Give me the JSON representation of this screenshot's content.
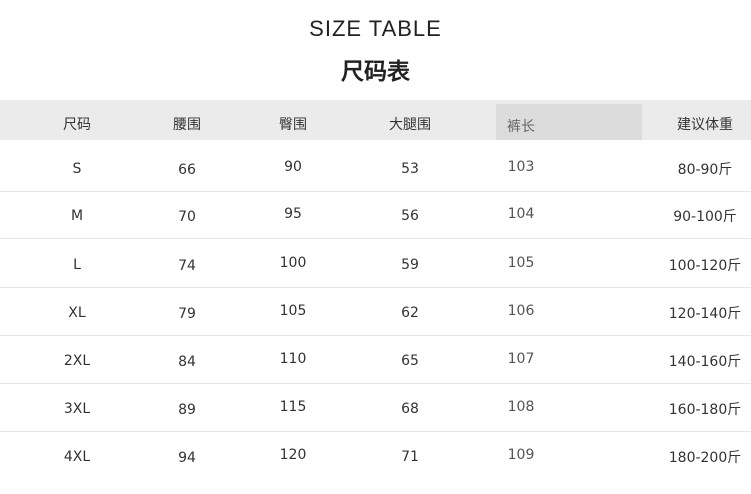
{
  "title_en": "SIZE TABLE",
  "title_cn": "尺码表",
  "headers": [
    "尺码",
    "腰围",
    "臀围",
    "大腿围",
    "裤长",
    "建议体重"
  ],
  "rows": [
    [
      "S",
      "66",
      "90",
      "53",
      "103",
      "80-90斤"
    ],
    [
      "M",
      "70",
      "95",
      "56",
      "104",
      "90-100斤"
    ],
    [
      "L",
      "74",
      "100",
      "59",
      "105",
      "100-120斤"
    ],
    [
      "XL",
      "79",
      "105",
      "62",
      "106",
      "120-140斤"
    ],
    [
      "2XL",
      "84",
      "110",
      "65",
      "107",
      "140-160斤"
    ],
    [
      "3XL",
      "89",
      "115",
      "68",
      "108",
      "160-180斤"
    ],
    [
      "4XL",
      "94",
      "120",
      "71",
      "109",
      "180-200斤"
    ]
  ],
  "colors": {
    "header_bg": "#ebebeb",
    "highlight_bg": "#dcdcdc"
  }
}
